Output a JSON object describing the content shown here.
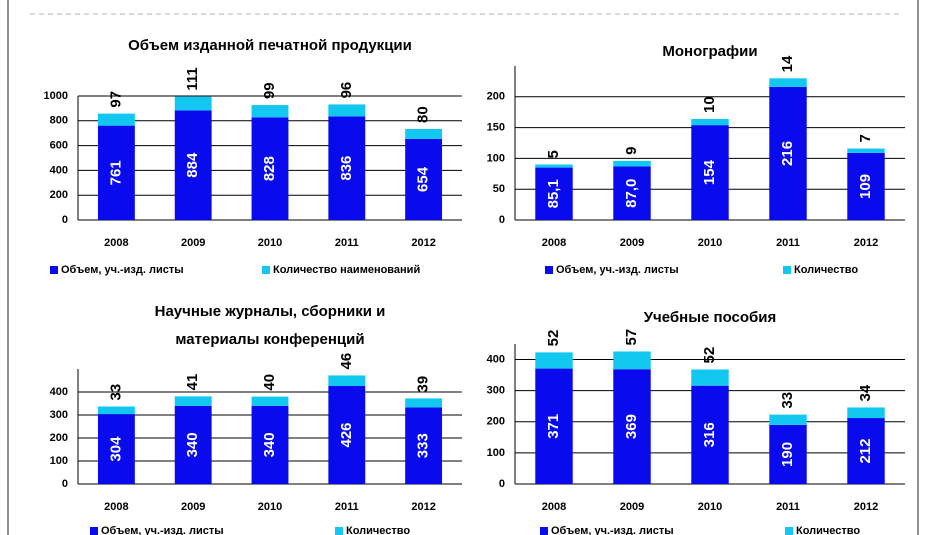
{
  "chart_data": [
    {
      "type": "bar",
      "title": "Объем изданной печатной продукции",
      "categories": [
        "2008",
        "2009",
        "2010",
        "2011",
        "2012"
      ],
      "series": [
        {
          "name": "Объем, уч.-изд. листы",
          "color": "#0a0aee",
          "values": [
            761,
            884,
            828,
            836,
            654
          ]
        },
        {
          "name": "Количество наименований",
          "color": "#12c8f0",
          "values": [
            97,
            111,
            99,
            96,
            80
          ]
        }
      ],
      "ylim": [
        0,
        1000
      ],
      "yticks": [
        0,
        200,
        400,
        600,
        800,
        1000
      ],
      "grid": true,
      "stacked": true,
      "legend": "bottom"
    },
    {
      "type": "bar",
      "title": "Монографии",
      "categories": [
        "2008",
        "2009",
        "2010",
        "2011",
        "2012"
      ],
      "series": [
        {
          "name": "Объем, уч.-изд. листы",
          "color": "#0a0aee",
          "values": [
            85.1,
            87.0,
            154,
            216,
            109
          ],
          "value_labels": [
            "85,1",
            "87,0",
            "154",
            "216",
            "109"
          ]
        },
        {
          "name": "Количество",
          "color": "#12c8f0",
          "values": [
            5,
            9,
            10,
            14,
            7
          ]
        }
      ],
      "ylim": [
        0,
        250
      ],
      "yticks": [
        0,
        50,
        100,
        150,
        200
      ],
      "grid": true,
      "stacked": true,
      "legend": "bottom"
    },
    {
      "type": "bar",
      "title": [
        "Научные журналы, сборники и",
        "материалы конференций"
      ],
      "categories": [
        "2008",
        "2009",
        "2010",
        "2011",
        "2012"
      ],
      "series": [
        {
          "name": "Объем, уч.-изд. листы",
          "color": "#0a0aee",
          "values": [
            304,
            340,
            340,
            426,
            333
          ]
        },
        {
          "name": "Количество",
          "color": "#12c8f0",
          "values": [
            33,
            41,
            40,
            46,
            39
          ]
        }
      ],
      "ylim": [
        0,
        500
      ],
      "yticks": [
        0,
        100,
        200,
        300,
        400
      ],
      "grid": true,
      "stacked": true,
      "legend": "bottom"
    },
    {
      "type": "bar",
      "title": "Учебные пособия",
      "categories": [
        "2008",
        "2009",
        "2010",
        "2011",
        "2012"
      ],
      "series": [
        {
          "name": "Объем, уч.-изд. листы",
          "color": "#0a0aee",
          "values": [
            371,
            369,
            316,
            190,
            212
          ]
        },
        {
          "name": "Количество",
          "color": "#12c8f0",
          "values": [
            52,
            57,
            52,
            33,
            34
          ]
        }
      ],
      "ylim": [
        0,
        450
      ],
      "yticks": [
        0,
        100,
        200,
        300,
        400
      ],
      "grid": true,
      "stacked": true,
      "legend": "bottom"
    }
  ]
}
